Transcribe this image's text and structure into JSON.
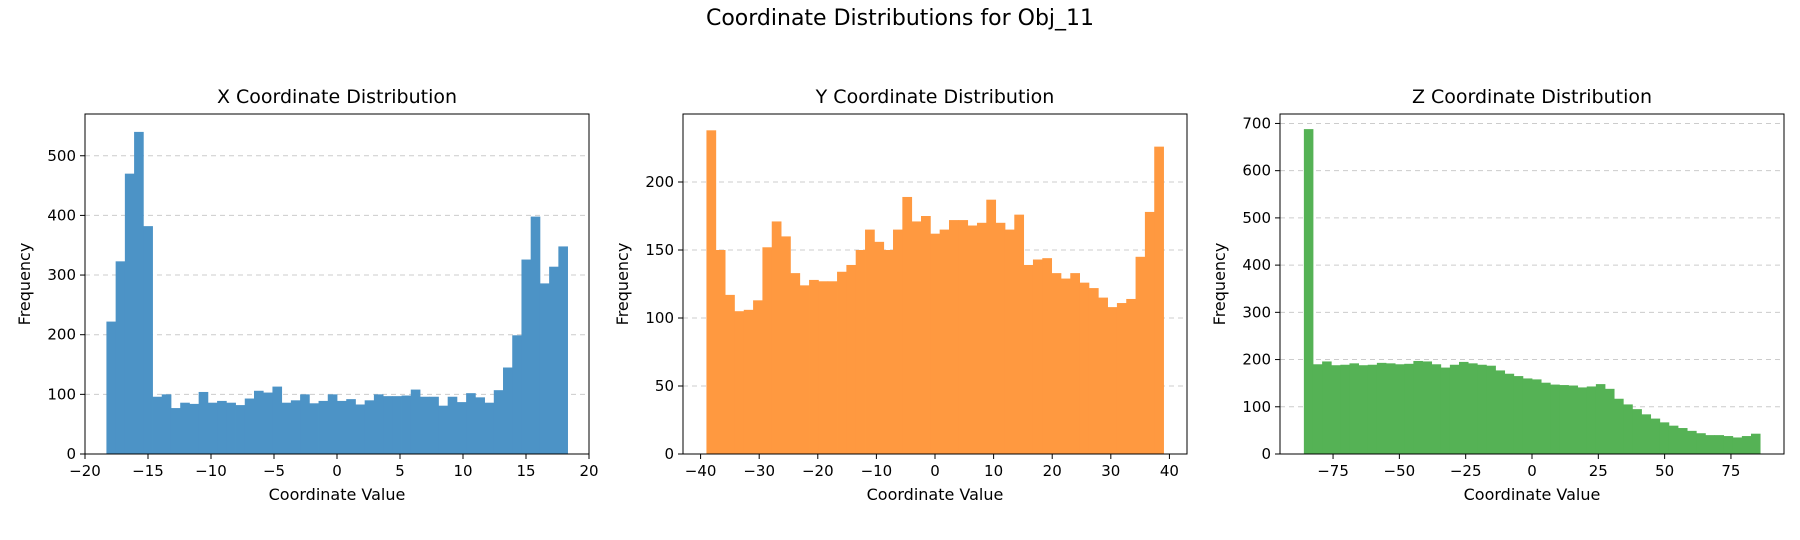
{
  "figure": {
    "title": "Coordinate Distributions for Obj_11"
  },
  "chart_data": [
    {
      "type": "bar",
      "title": "X Coordinate Distribution",
      "xlabel": "Coordinate Value",
      "ylabel": "Frequency",
      "color": "#4C93C6",
      "xlim": [
        -20,
        20
      ],
      "ylim": [
        0,
        570
      ],
      "xticks": [
        -20,
        -15,
        -10,
        -5,
        0,
        5,
        10,
        15,
        20
      ],
      "yticks": [
        0,
        100,
        200,
        300,
        400,
        500
      ],
      "grid": "y-dashed",
      "bin_start": -18.3,
      "bin_end": 18.3,
      "values": [
        222,
        323,
        470,
        540,
        382,
        96,
        100,
        77,
        86,
        84,
        104,
        86,
        89,
        86,
        82,
        93,
        106,
        103,
        113,
        86,
        90,
        100,
        85,
        89,
        100,
        89,
        92,
        83,
        90,
        100,
        97,
        97,
        98,
        108,
        96,
        96,
        81,
        96,
        87,
        102,
        95,
        86,
        107,
        145,
        199,
        326,
        398,
        286,
        314,
        348
      ]
    },
    {
      "type": "bar",
      "title": "Y Coordinate Distribution",
      "xlabel": "Coordinate Value",
      "ylabel": "Frequency",
      "color": "#FF9940",
      "xlim": [
        -43,
        43
      ],
      "ylim": [
        0,
        250
      ],
      "xticks": [
        -40,
        -30,
        -20,
        -10,
        0,
        10,
        20,
        30,
        40
      ],
      "yticks": [
        0,
        50,
        100,
        150,
        200
      ],
      "grid": "y-dashed",
      "bin_start": -39,
      "bin_end": 39,
      "values": [
        238,
        150,
        117,
        105,
        106,
        113,
        152,
        171,
        160,
        133,
        124,
        128,
        127,
        127,
        134,
        139,
        150,
        165,
        156,
        150,
        165,
        189,
        171,
        175,
        162,
        165,
        172,
        172,
        168,
        170,
        187,
        170,
        165,
        176,
        139,
        143,
        144,
        133,
        129,
        133,
        126,
        122,
        115,
        108,
        111,
        114,
        145,
        178,
        226
      ]
    },
    {
      "type": "bar",
      "title": "Z Coordinate Distribution",
      "xlabel": "Coordinate Value",
      "ylabel": "Frequency",
      "color": "#55B255",
      "xlim": [
        -95,
        95
      ],
      "ylim": [
        0,
        720
      ],
      "xticks": [
        -75,
        -50,
        -25,
        0,
        25,
        50,
        75
      ],
      "yticks": [
        0,
        100,
        200,
        300,
        400,
        500,
        600,
        700
      ],
      "grid": "y-dashed",
      "bin_start": -86,
      "bin_end": 86,
      "values": [
        688,
        190,
        196,
        188,
        189,
        192,
        188,
        189,
        193,
        192,
        190,
        191,
        197,
        196,
        190,
        183,
        189,
        195,
        192,
        189,
        187,
        177,
        170,
        165,
        160,
        158,
        151,
        147,
        146,
        145,
        141,
        143,
        148,
        138,
        117,
        105,
        95,
        84,
        75,
        67,
        60,
        55,
        49,
        44,
        40,
        40,
        38,
        35,
        38,
        43
      ]
    }
  ]
}
